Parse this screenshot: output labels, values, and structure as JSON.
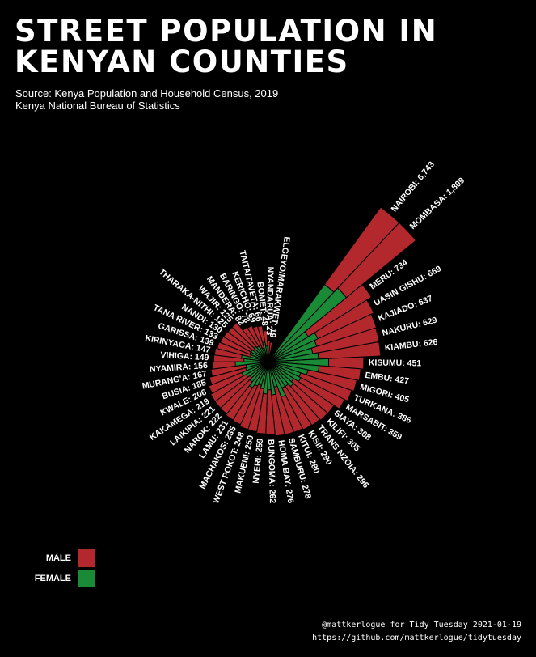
{
  "title": "STREET POPULATION IN KENYAN COUNTIES",
  "subtitle_line1": "Source: Kenya Population and Household Census, 2019",
  "subtitle_line2": "Kenya National Bureau of Statistics",
  "caption_line1": "@mattkerlogue for Tidy Tuesday 2021-01-19",
  "caption_line2": "https://github.com/mattkerlogue/tidytuesday",
  "colors": {
    "male": "#b2282c",
    "female": "#1a8a36",
    "background": "#000000",
    "text": "#ffffff"
  },
  "chart_data": {
    "type": "bar",
    "polar": true,
    "categories": [
      "NAIROBI",
      "MOMBASA",
      "MERU",
      "UASIN GISHU",
      "KAJIADO",
      "NAKURU",
      "KIAMBU",
      "KISUMU",
      "EMBU",
      "MIGORI",
      "TURKANA",
      "MARSABIT",
      "SIAYA",
      "KILIFI",
      "TRANS NZOIA",
      "KISII",
      "KITUI",
      "SAMBURU",
      "HOMA BAY",
      "BUNGOMA",
      "NYERI",
      "MAKUENI",
      "WEST POKOT",
      "MACHAKOS",
      "LAMU",
      "NAROK",
      "LAIKIPIA",
      "KAKAMEGA",
      "KWALE",
      "BUSIA",
      "MURANG'A",
      "NYAMIRA",
      "VIHIGA",
      "KIRINYAGA",
      "GARISSA",
      "TANA RIVER",
      "NANDI",
      "THARAKA-NITHI",
      "WAJIR",
      "MANDERA",
      "BARINGO",
      "KERICHO",
      "TAITA/TAVETA",
      "BOMET",
      "NYANDARUA",
      "ELGEYO/MARAKWET"
    ],
    "totals": [
      6743,
      1809,
      734,
      669,
      637,
      629,
      626,
      451,
      427,
      405,
      386,
      359,
      308,
      305,
      296,
      290,
      280,
      278,
      276,
      262,
      259,
      250,
      248,
      235,
      231,
      222,
      221,
      219,
      206,
      185,
      167,
      156,
      149,
      147,
      139,
      133,
      130,
      125,
      125,
      82,
      78,
      69,
      66,
      48,
      23,
      19
    ],
    "labels": [
      "NAIROBI: 6,743",
      "MOMBASA: 1,809",
      "MERU: 734",
      "UASIN GISHU: 669",
      "KAJIADO: 637",
      "NAKURU: 629",
      "KIAMBU: 626",
      "KISUMU: 451",
      "EMBU: 427",
      "MIGORI: 405",
      "TURKANA: 386",
      "MARSABIT: 359",
      "SIAYA: 308",
      "KILIFI: 305",
      "TRANS NZOIA: 296",
      "KISII: 290",
      "KITUI: 280",
      "SAMBURU: 278",
      "HOMA BAY: 276",
      "BUNGOMA: 262",
      "NYERI: 259",
      "MAKUENI: 250",
      "WEST POKOT: 248",
      "MACHAKOS: 235",
      "LAMU: 231",
      "NAROK: 222",
      "LAIKIPIA: 221",
      "KAKAMEGA: 219",
      "KWALE: 206",
      "BUSIA: 185",
      "MURANG'A: 167",
      "NYAMIRA: 156",
      "VIHIGA: 149",
      "KIRINYAGA: 147",
      "GARISSA: 139",
      "TANA RIVER: 133",
      "NANDI: 130",
      "THARAKA-NITHI: 125",
      "WAJIR: 125",
      "MANDERA: 82",
      "BARINGO: 78",
      "KERICHO: 69",
      "TAITA/TAVETA: 66",
      "BOMET: 48",
      "NYANDARUA: 23",
      "ELGEYO/MARAKWET: 19"
    ],
    "female_share": [
      0.25,
      0.28,
      0.15,
      0.22,
      0.2,
      0.16,
      0.2,
      0.4,
      0.3,
      0.2,
      0.15,
      0.18,
      0.15,
      0.18,
      0.15,
      0.15,
      0.25,
      0.12,
      0.2,
      0.15,
      0.2,
      0.15,
      0.12,
      0.15,
      0.2,
      0.15,
      0.12,
      0.15,
      0.2,
      0.15,
      0.15,
      0.35,
      0.2,
      0.25,
      0.12,
      0.15,
      0.15,
      0.12,
      0.15,
      0.2,
      0.15,
      0.15,
      0.3,
      0.25,
      0.1,
      0.15
    ],
    "series": [
      {
        "name": "MALE",
        "color": "#b2282c"
      },
      {
        "name": "FEMALE",
        "color": "#1a8a36"
      }
    ],
    "scale": "sqrt",
    "legend": "bottom-left"
  }
}
